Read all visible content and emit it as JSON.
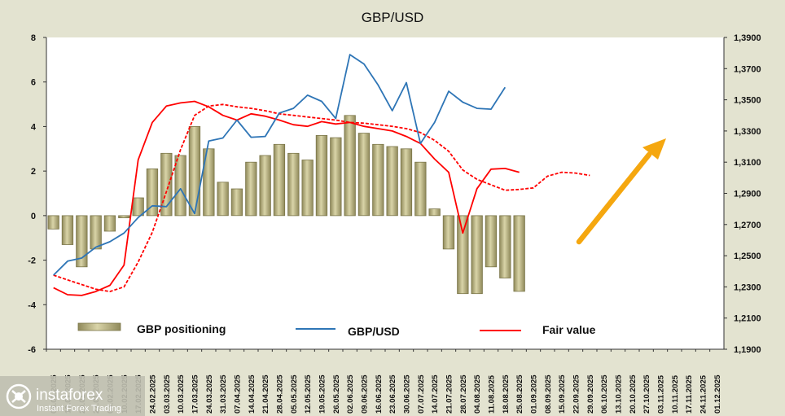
{
  "chart_data": {
    "type": "bar+line",
    "title": "GBP/USD",
    "x": [
      "06.01.2025",
      "13.01.2025",
      "20.01.2025",
      "27.01.2025",
      "03.02.2025",
      "10.02.2025",
      "17.02.2025",
      "24.02.2025",
      "03.03.2025",
      "10.03.2025",
      "17.03.2025",
      "24.03.2025",
      "31.03.2025",
      "07.04.2025",
      "14.04.2025",
      "21.04.2025",
      "28.04.2025",
      "05.05.2025",
      "12.05.2025",
      "19.05.2025",
      "26.05.2025",
      "02.06.2025",
      "09.06.2025",
      "16.06.2025",
      "23.06.2025",
      "30.06.2025",
      "07.07.2025",
      "14.07.2025",
      "21.07.2025",
      "28.07.2025",
      "04.08.2025",
      "11.08.2025",
      "18.08.2025",
      "25.08.2025",
      "01.09.2025",
      "08.09.2025",
      "15.09.2025",
      "22.09.2025",
      "29.09.2025",
      "06.10.2025",
      "13.10.2025",
      "20.10.2025",
      "27.10.2025",
      "03.11.2025",
      "10.11.2025",
      "17.11.2025",
      "24.11.2025",
      "01.12.2025"
    ],
    "y_left": {
      "ylim": [
        -6,
        8
      ],
      "ticks": [
        "-6",
        "-4",
        "-2",
        "0",
        "2",
        "4",
        "6",
        "8"
      ]
    },
    "y_right": {
      "ylim": [
        1.19,
        1.39
      ],
      "ticks": [
        "1,1900",
        "1,2100",
        "1,2300",
        "1,2500",
        "1,2700",
        "1,2900",
        "1,3100",
        "1,3300",
        "1,3500",
        "1,3700",
        "1,3900"
      ]
    },
    "series": [
      {
        "name": "GBP positioning",
        "kind": "bar",
        "axis": "left",
        "values": [
          -0.6,
          -1.3,
          -2.3,
          -1.5,
          -0.7,
          -0.1,
          0.8,
          2.1,
          2.8,
          2.7,
          4.0,
          3.0,
          1.5,
          1.2,
          2.4,
          2.7,
          3.2,
          2.8,
          2.5,
          3.6,
          3.5,
          4.5,
          3.7,
          3.2,
          3.1,
          3.0,
          2.4,
          0.3,
          -1.5,
          -3.5,
          -3.5,
          -2.3,
          -2.8,
          -3.4,
          null,
          null,
          null,
          null,
          null,
          null,
          null,
          null,
          null,
          null,
          null,
          null,
          null,
          null
        ]
      },
      {
        "name": "GBP/USD",
        "kind": "line",
        "axis": "right",
        "values": [
          1.2375,
          1.2465,
          1.2485,
          1.2555,
          1.259,
          1.2645,
          1.2745,
          1.282,
          1.2815,
          1.293,
          1.277,
          1.3235,
          1.3255,
          1.337,
          1.326,
          1.3265,
          1.3415,
          1.3445,
          1.353,
          1.349,
          1.338,
          1.379,
          1.373,
          1.3595,
          1.343,
          1.361,
          1.322,
          1.3355,
          1.3555,
          1.3485,
          1.3445,
          1.344,
          1.358,
          null,
          null,
          null,
          null,
          null,
          null,
          null,
          null,
          null,
          null,
          null,
          null,
          null,
          null,
          null
        ]
      }
    ],
    "legend": [
      {
        "label": "GBP positioning",
        "color": "#b8b27d"
      },
      {
        "label": "GBP/USD",
        "color": "#2e75b6"
      },
      {
        "label": "Fair value",
        "color": "#ff0000"
      }
    ],
    "fair_value_solid": [
      1.2295,
      1.225,
      1.2245,
      1.227,
      1.231,
      1.244,
      1.3115,
      1.3355,
      1.346,
      1.348,
      1.349,
      1.3455,
      1.34,
      1.337,
      1.341,
      1.3395,
      1.337,
      1.334,
      1.333,
      1.336,
      1.3345,
      1.3355,
      1.333,
      1.3315,
      1.33,
      1.3265,
      1.322,
      1.312,
      1.3035,
      1.2645,
      1.293,
      1.3055,
      1.306,
      1.3035,
      null,
      null,
      null,
      null,
      null,
      null,
      null,
      null,
      null,
      null,
      null,
      null,
      null,
      null
    ],
    "fair_value_dashed": [
      1.2375,
      1.2345,
      1.2315,
      1.2285,
      1.227,
      1.23,
      1.246,
      1.265,
      1.291,
      1.318,
      1.34,
      1.346,
      1.347,
      1.3455,
      1.3445,
      1.343,
      1.341,
      1.34,
      1.339,
      1.338,
      1.337,
      1.3355,
      1.335,
      1.334,
      1.333,
      1.3315,
      1.329,
      1.324,
      1.317,
      1.305,
      1.299,
      1.2955,
      1.292,
      1.2925,
      1.2935,
      1.301,
      1.3035,
      1.303,
      1.3015,
      null,
      null,
      null,
      null,
      null,
      null,
      null,
      null,
      null
    ],
    "grid": false,
    "legend_position": "bottom"
  },
  "watermark": {
    "brand": "instaforex",
    "tagline": "Instant Forex Trading"
  }
}
